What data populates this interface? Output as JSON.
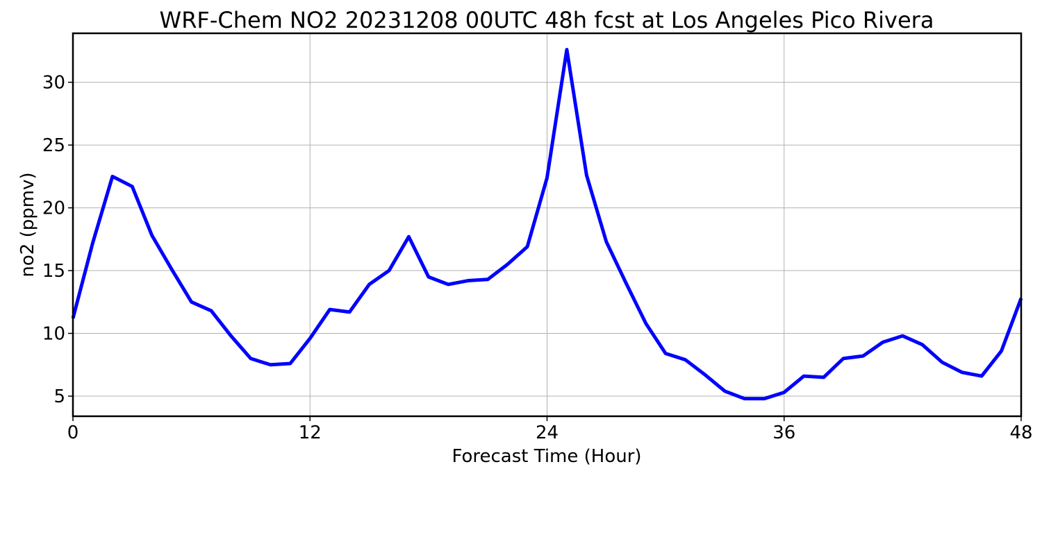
{
  "chart_data": {
    "type": "line",
    "title": "WRF-Chem NO2  20231208 00UTC 48h fcst at Los Angeles Pico Rivera",
    "xlabel": "Forecast Time (Hour)",
    "ylabel": "no2  (ppmv)",
    "xlim": [
      0,
      48
    ],
    "ylim": [
      3.4,
      33.9
    ],
    "xticks": [
      0,
      12,
      24,
      36,
      48
    ],
    "yticks": [
      5,
      10,
      15,
      20,
      25,
      30
    ],
    "grid": true,
    "series": [
      {
        "color": "#0000ff",
        "x": [
          0,
          1,
          2,
          3,
          4,
          5,
          6,
          7,
          8,
          9,
          10,
          11,
          12,
          13,
          14,
          15,
          16,
          17,
          18,
          19,
          20,
          21,
          22,
          23,
          24,
          25,
          26,
          27,
          28,
          29,
          30,
          31,
          32,
          33,
          34,
          35,
          36,
          37,
          38,
          39,
          40,
          41,
          42,
          43,
          44,
          45,
          46,
          47,
          48
        ],
        "values": [
          11.2,
          17.2,
          22.5,
          21.7,
          17.8,
          15.1,
          12.5,
          11.8,
          9.8,
          8.0,
          7.5,
          7.6,
          9.6,
          11.9,
          11.7,
          13.9,
          15.0,
          17.7,
          14.5,
          13.9,
          14.2,
          14.3,
          15.5,
          16.9,
          22.4,
          32.6,
          22.6,
          17.3,
          14.0,
          10.8,
          8.4,
          7.9,
          6.7,
          5.4,
          4.8,
          4.8,
          5.3,
          6.6,
          6.5,
          8.0,
          8.2,
          9.3,
          9.8,
          9.1,
          7.7,
          6.9,
          6.6,
          8.6,
          12.8
        ]
      }
    ]
  }
}
